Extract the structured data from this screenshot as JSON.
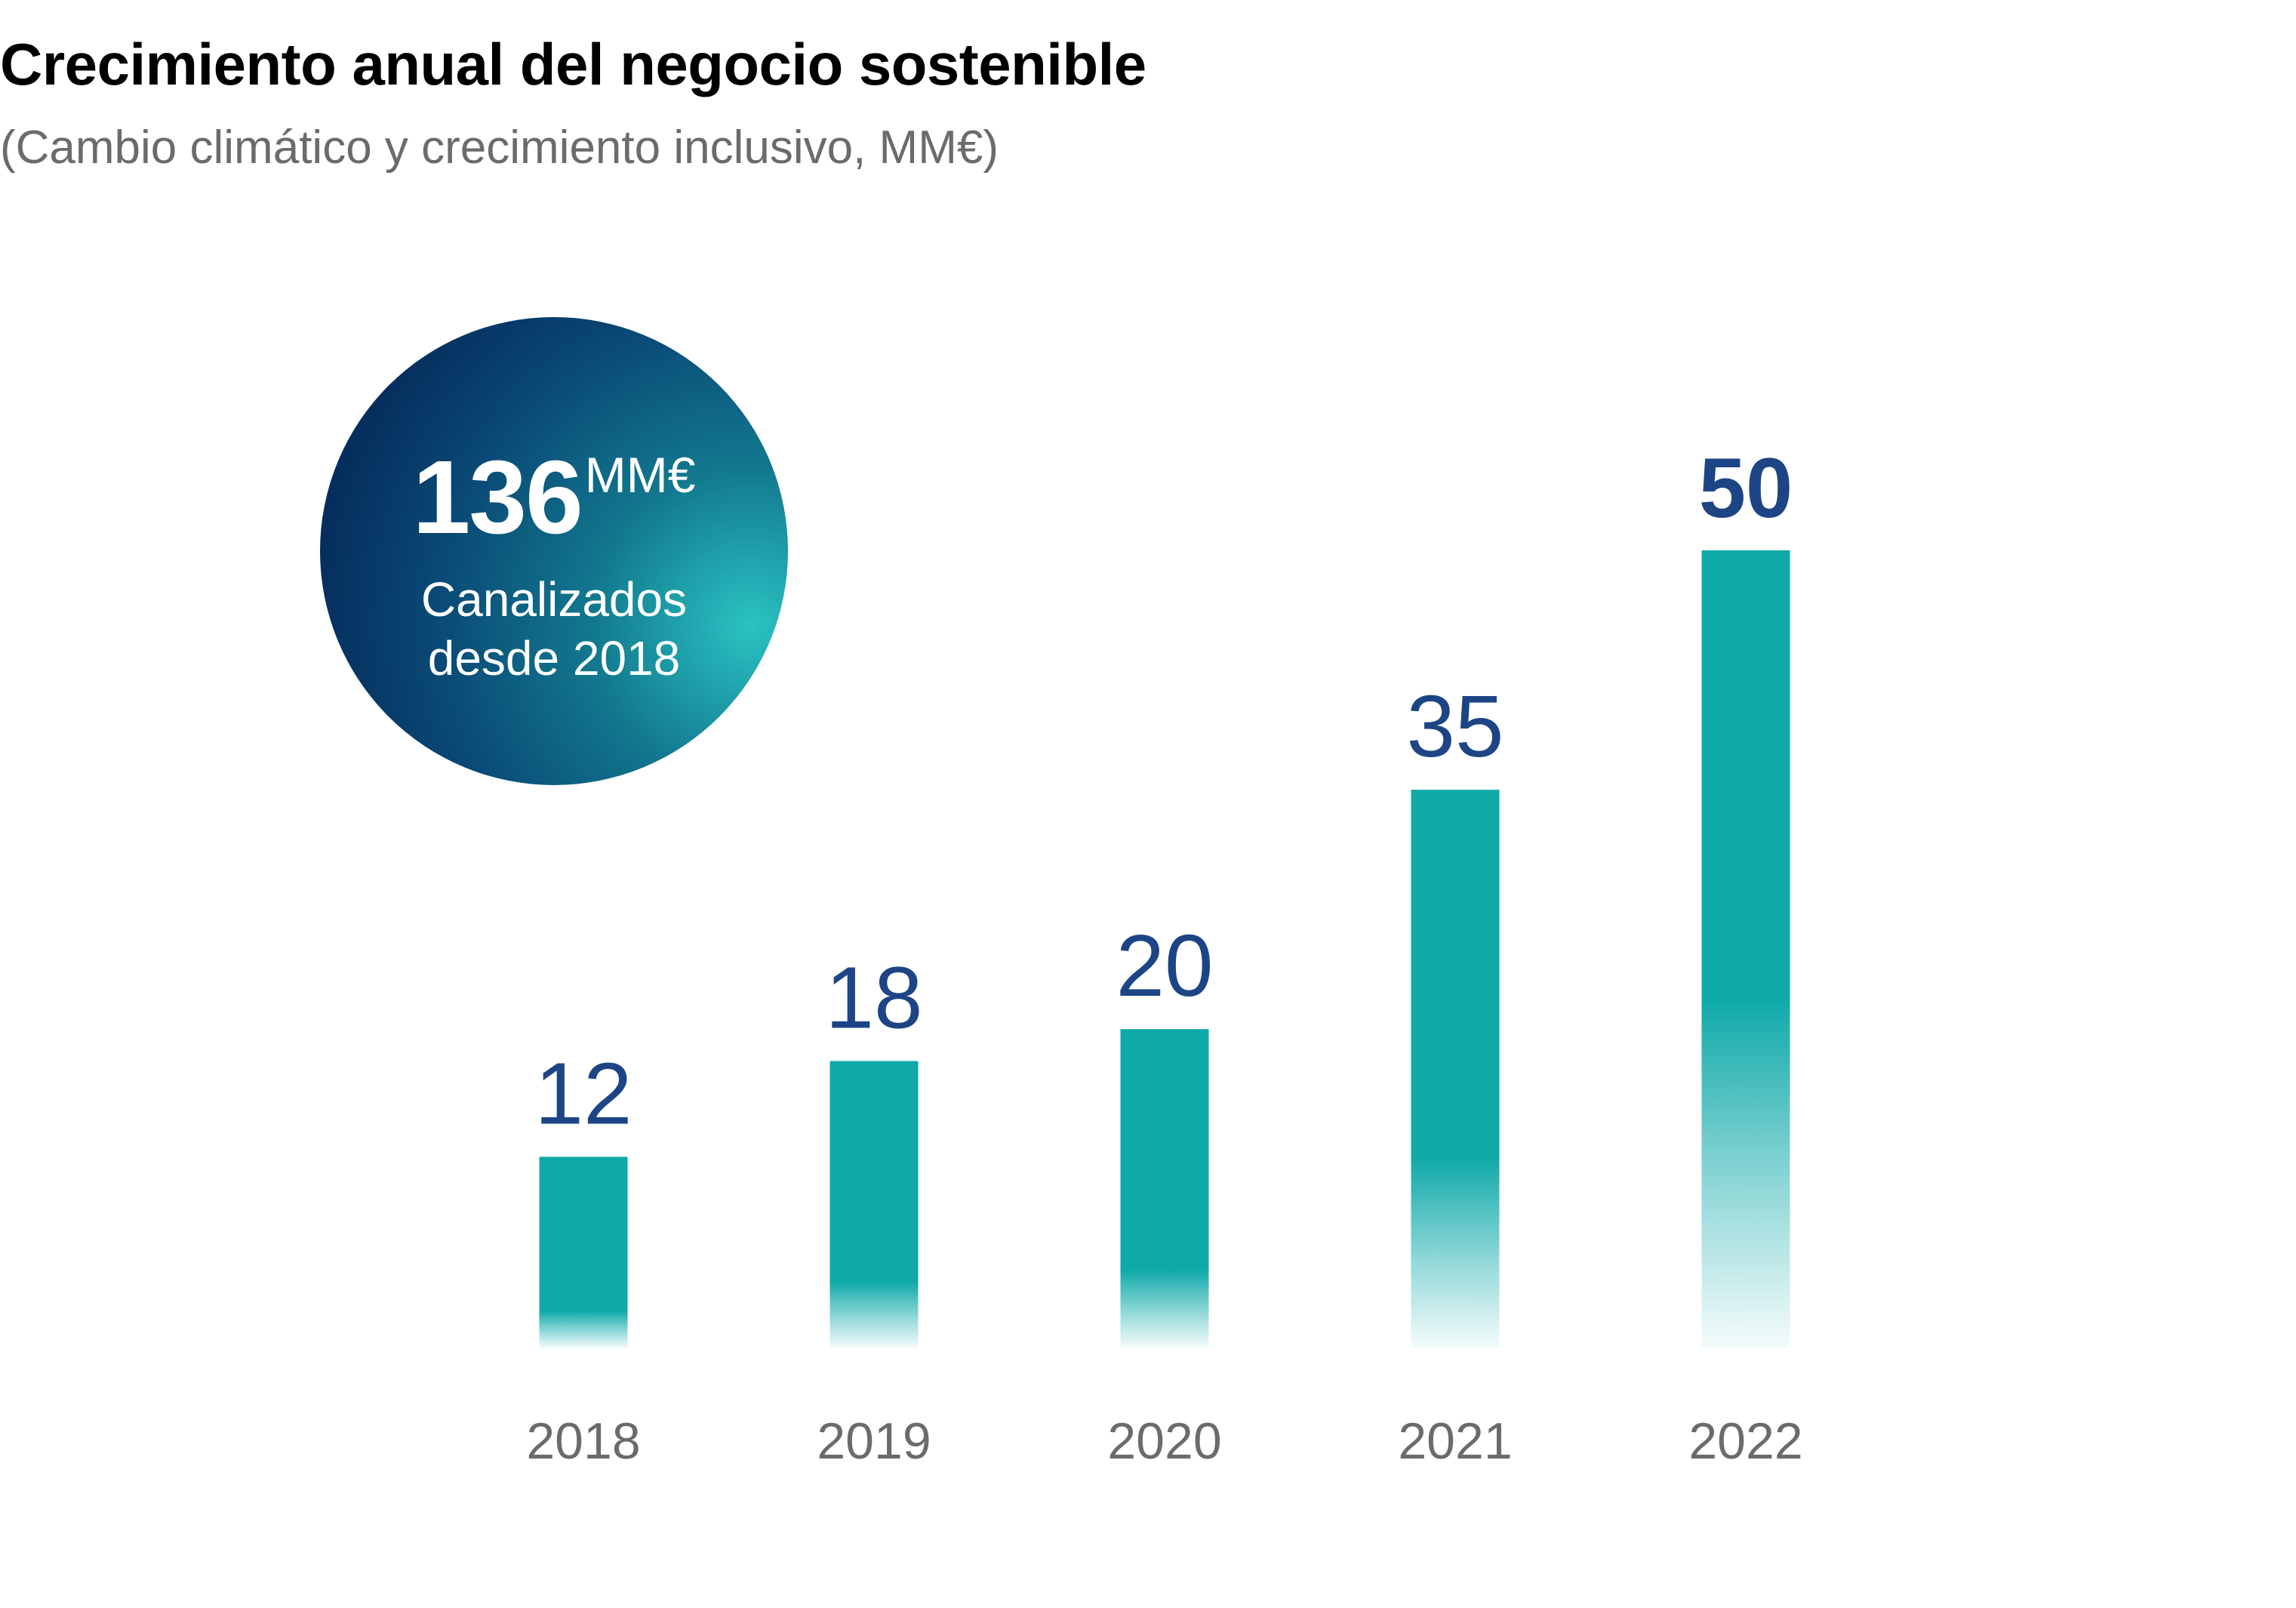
{
  "chart_data": {
    "type": "bar",
    "title": "Crecimiento anual del negocio sostenible",
    "subtitle": "(Cambio climático y crecimiento inclusivo, MM€)",
    "categories": [
      "2018",
      "2019",
      "2020",
      "2021",
      "2022"
    ],
    "values": [
      12,
      18,
      20,
      35,
      50
    ],
    "data_labels": [
      "12",
      "18",
      "20",
      "35",
      "50"
    ],
    "highlight_index": 4,
    "xlabel": "",
    "ylabel": "",
    "ylim": [
      0,
      50
    ],
    "grid": false,
    "bar_color": "#0fa9a9",
    "label_color": "#1d4586",
    "tick_color": "#6b6b6b",
    "callout": {
      "value": "136",
      "unit": "MM€",
      "line1": "Canalizados",
      "line2": "desde 2018"
    }
  }
}
